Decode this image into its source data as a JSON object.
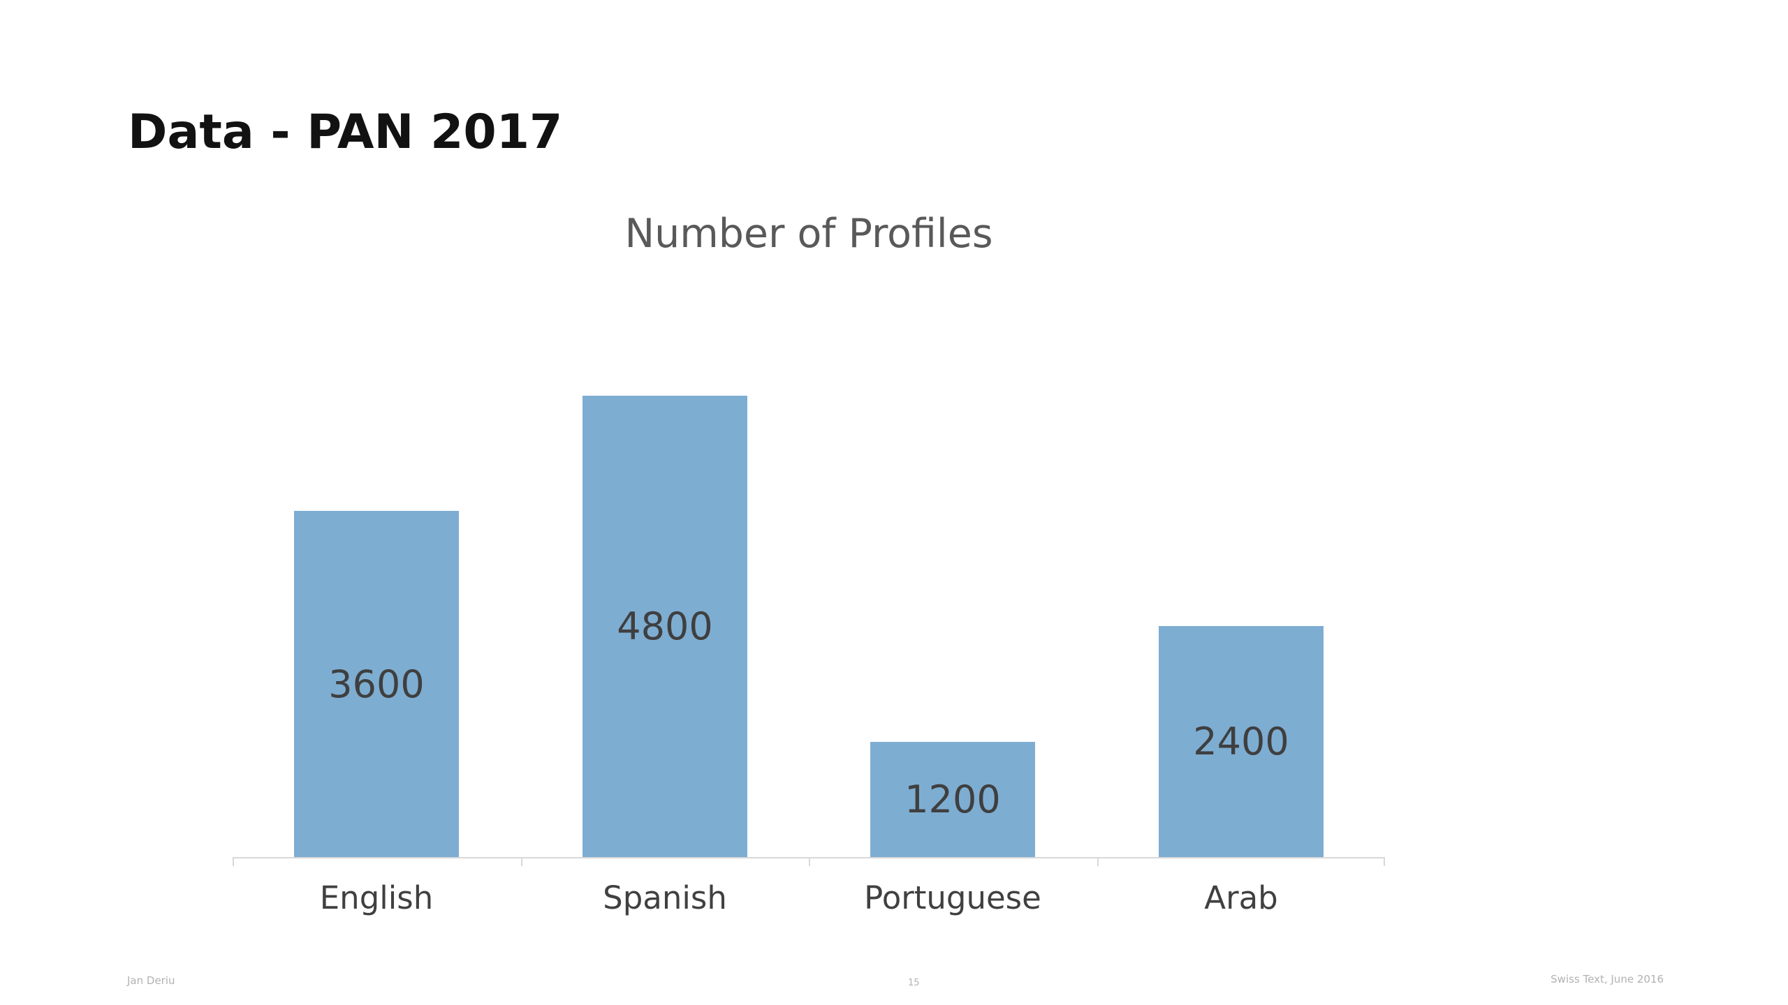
{
  "slide": {
    "title": "Data - PAN 2017",
    "footer": {
      "author": "Jan Deriu",
      "page_number": "15",
      "event": "Swiss Text, June 2016"
    }
  },
  "chart_data": {
    "type": "bar",
    "title": "Number of Profiles",
    "categories": [
      "English",
      "Spanish",
      "Portuguese",
      "Arab"
    ],
    "values": [
      3600,
      4800,
      1200,
      2400
    ],
    "xlabel": "",
    "ylabel": "",
    "ylim": [
      0,
      5000
    ],
    "gridlines": false,
    "legend": "none",
    "value_label_position": "center",
    "bar_color": "#7eadd2",
    "value_label_color": "#3f3f3f",
    "category_label_color": "#404040",
    "axis_line_color": "#d8d8d8",
    "title_color": "#595959"
  }
}
